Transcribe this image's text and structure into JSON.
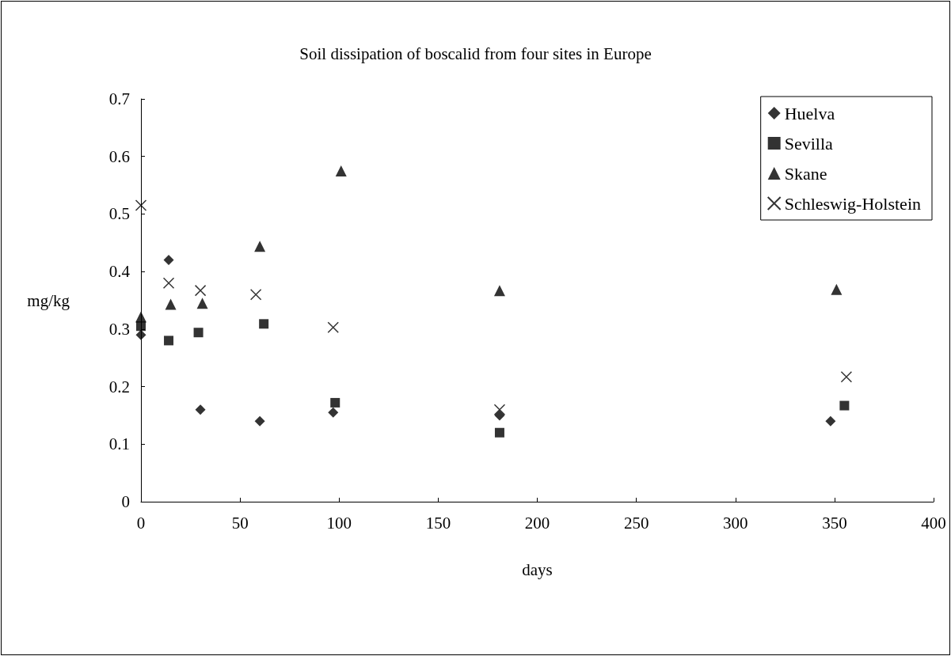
{
  "chart_data": {
    "type": "scatter",
    "title": "Soil dissipation of boscalid from four sites in Europe",
    "xlabel": "days",
    "ylabel": "mg/kg",
    "xlim": [
      0,
      400
    ],
    "xticks": [
      0,
      50,
      100,
      150,
      200,
      250,
      300,
      350,
      400
    ],
    "ylim": [
      0,
      0.7
    ],
    "yticks": [
      0,
      0.1,
      0.2,
      0.3,
      0.4,
      0.5,
      0.6,
      0.7
    ],
    "grid": false,
    "legend": "top right",
    "series": [
      {
        "name": "Huelva",
        "color": "#000000",
        "marker": "diamond",
        "x": [
          0,
          14,
          30,
          60,
          97,
          181,
          348
        ],
        "values": [
          0.29,
          0.42,
          0.16,
          0.14,
          0.155,
          0.15,
          0.14
        ]
      },
      {
        "name": "Sevilla",
        "color": "#000000",
        "marker": "square",
        "x": [
          0,
          14,
          29,
          62,
          98,
          181,
          355
        ],
        "values": [
          0.305,
          0.28,
          0.294,
          0.309,
          0.172,
          0.12,
          0.167
        ]
      },
      {
        "name": "Skane",
        "color": "#000000",
        "marker": "triangle",
        "x": [
          0,
          15,
          31,
          60,
          101,
          181,
          351
        ],
        "values": [
          0.321,
          0.343,
          0.345,
          0.444,
          0.575,
          0.367,
          0.369
        ]
      },
      {
        "name": "Schleswig-Holstein",
        "color": "#000000",
        "marker": "cross",
        "x": [
          0,
          14,
          30,
          58,
          97,
          181,
          356
        ],
        "values": [
          0.515,
          0.38,
          0.367,
          0.36,
          0.303,
          0.16,
          0.217
        ]
      }
    ]
  }
}
